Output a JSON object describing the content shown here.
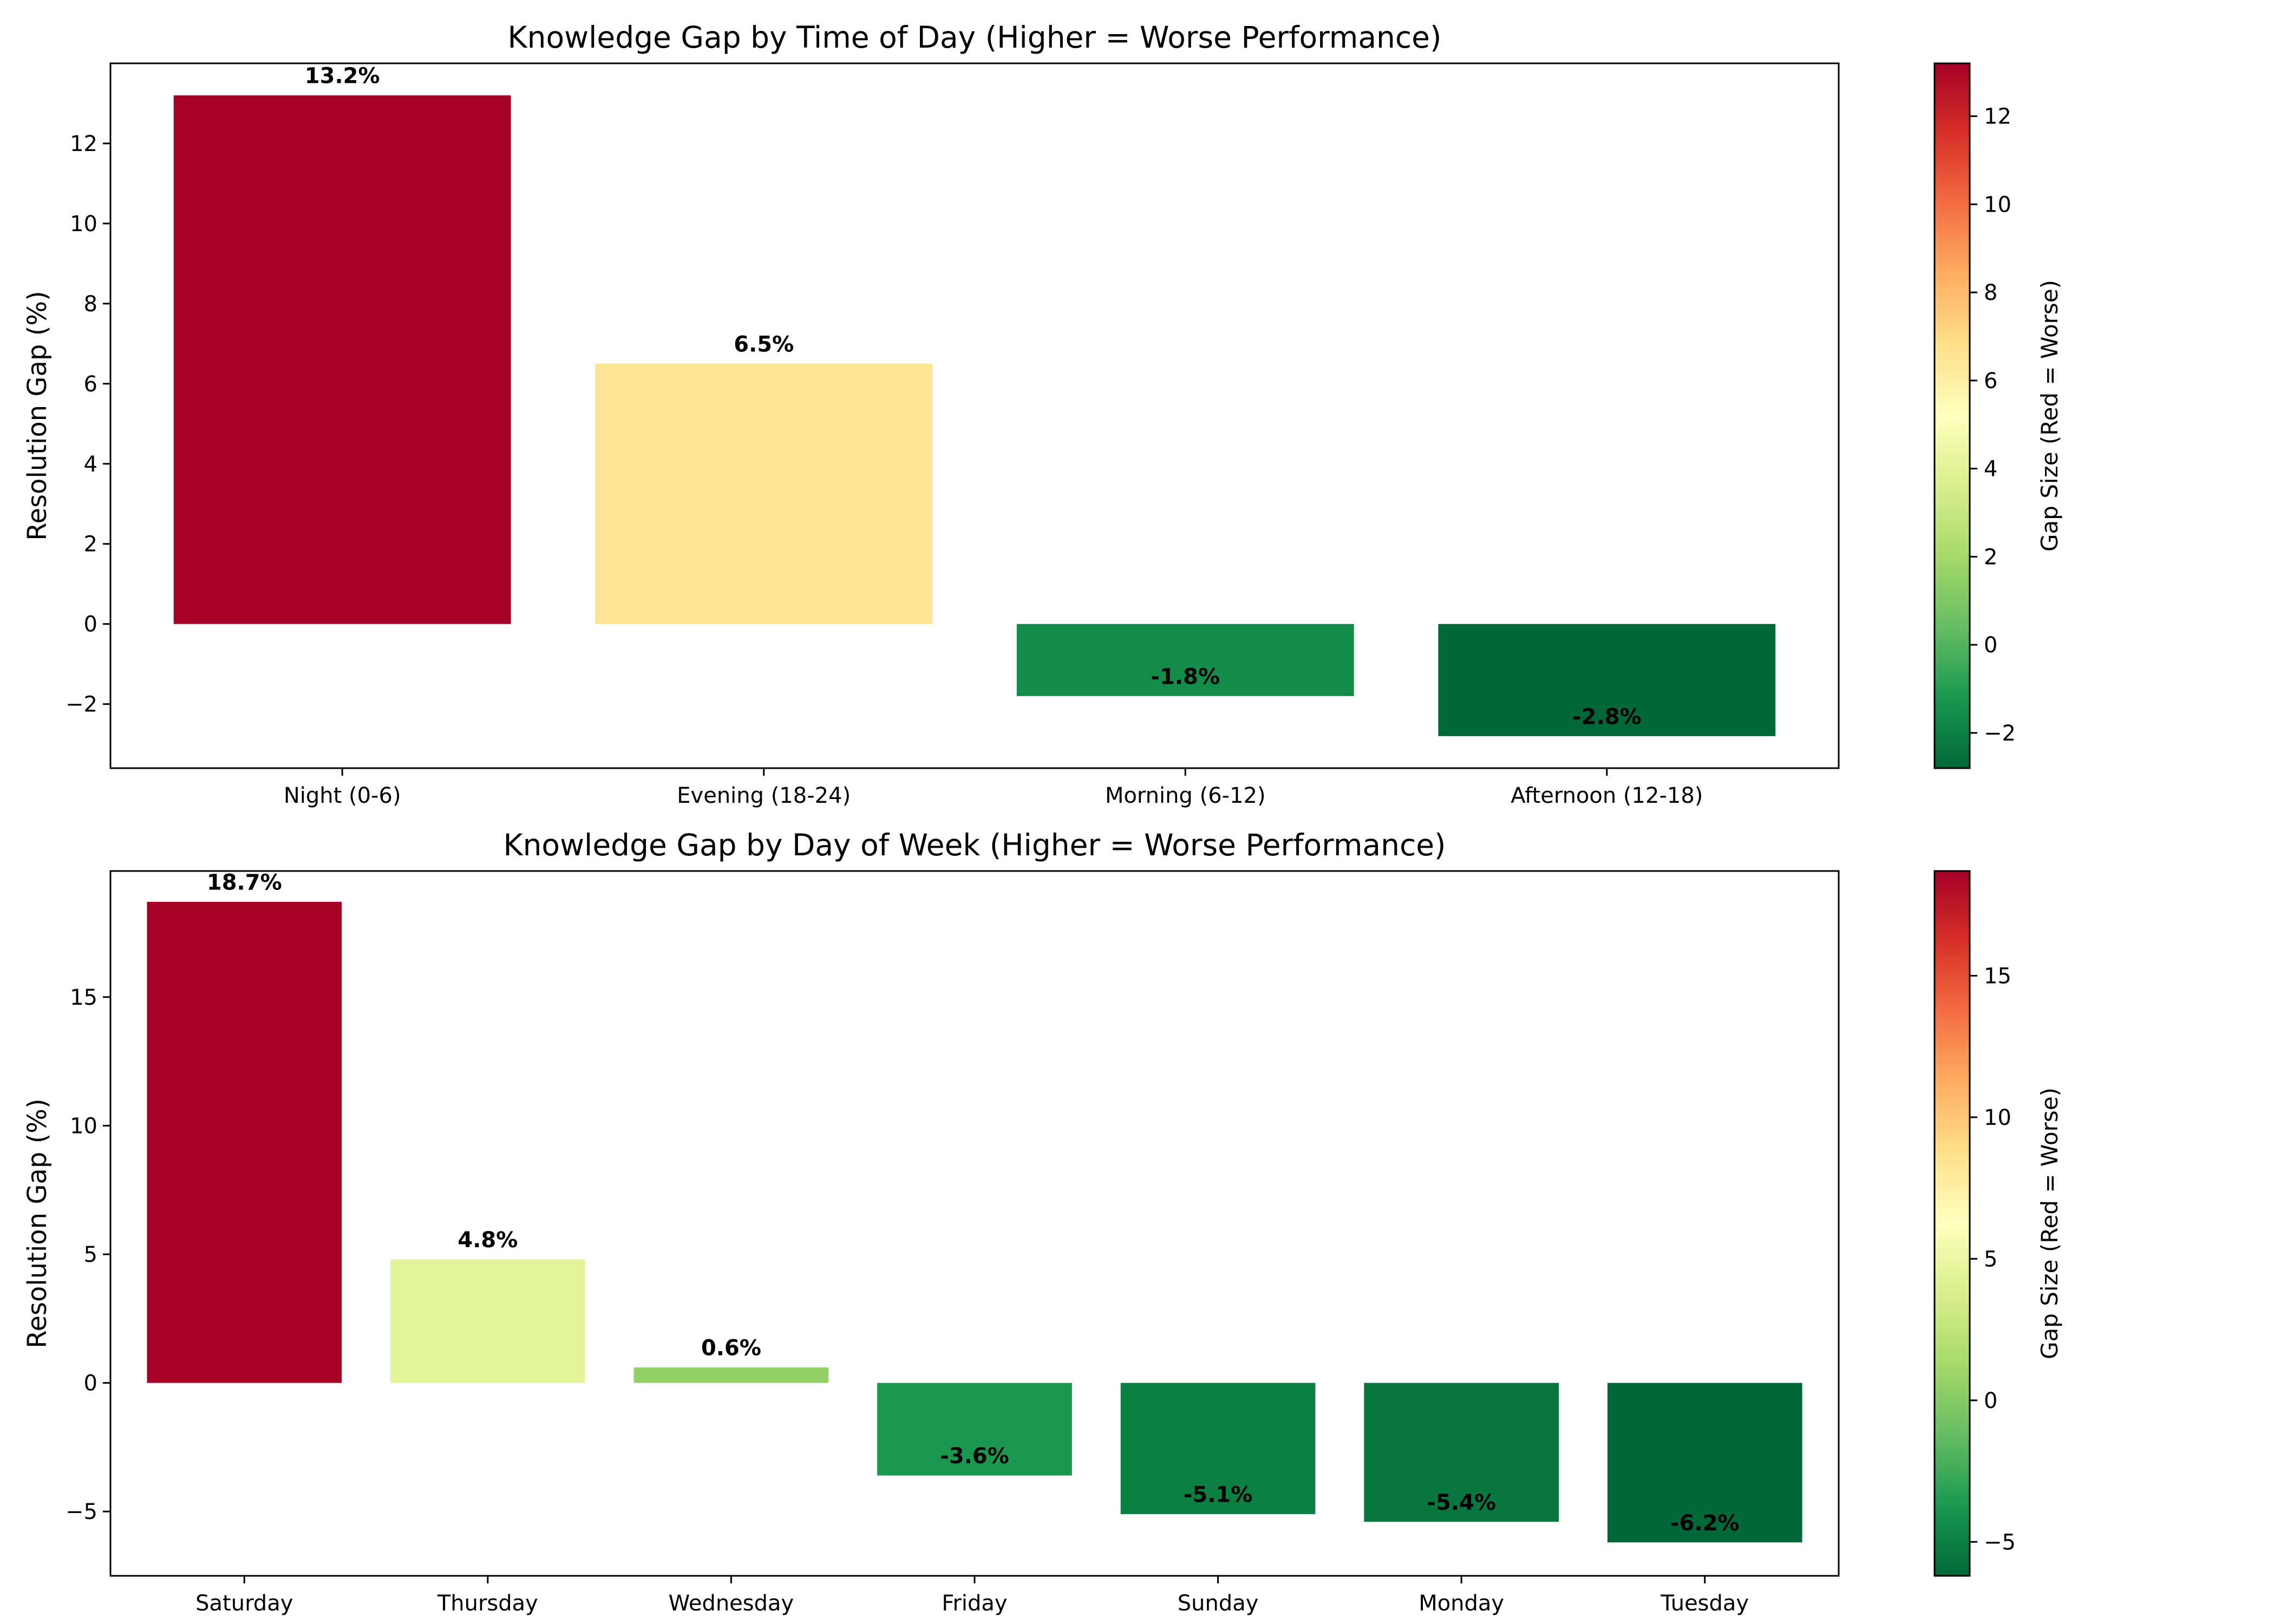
{
  "chart_data": [
    {
      "type": "bar",
      "title": "Knowledge Gap by Time of Day (Higher = Worse Performance)",
      "xlabel": "",
      "ylabel": "Resolution Gap (%)",
      "categories": [
        "Night (0-6)",
        "Evening (18-24)",
        "Morning (6-12)",
        "Afternoon (12-18)"
      ],
      "values": [
        13.2,
        6.5,
        -1.8,
        -2.8
      ],
      "value_labels": [
        "13.2%",
        "6.5%",
        "-1.8%",
        "-2.8%"
      ],
      "ylim": [
        -3.6,
        14.0
      ],
      "yticks": [
        -2,
        0,
        2,
        4,
        6,
        8,
        10,
        12
      ],
      "ytick_labels": [
        "−2",
        "0",
        "2",
        "4",
        "6",
        "8",
        "10",
        "12"
      ],
      "colorbar": {
        "label": "Gap Size (Red = Worse)",
        "colormap": "RdYlGn_r",
        "range": [
          -2.8,
          13.2
        ],
        "ticks": [
          -2,
          0,
          2,
          4,
          6,
          8,
          10,
          12
        ],
        "tick_labels": [
          "−2",
          "0",
          "2",
          "4",
          "6",
          "8",
          "10",
          "12"
        ]
      },
      "bar_colors": [
        "#a50026",
        "#fde593",
        "#138c4a",
        "#006837"
      ],
      "grid": false,
      "legend": "none"
    },
    {
      "type": "bar",
      "title": "Knowledge Gap by Day of Week (Higher = Worse Performance)",
      "xlabel": "",
      "ylabel": "Resolution Gap (%)",
      "categories": [
        "Saturday",
        "Thursday",
        "Wednesday",
        "Friday",
        "Sunday",
        "Monday",
        "Tuesday"
      ],
      "values": [
        18.7,
        4.8,
        0.6,
        -3.6,
        -5.1,
        -5.4,
        -6.2
      ],
      "value_labels": [
        "18.7%",
        "4.8%",
        "0.6%",
        "-3.6%",
        "-5.1%",
        "-5.4%",
        "-6.2%"
      ],
      "ylim": [
        -7.5,
        19.9
      ],
      "yticks": [
        -5,
        0,
        5,
        10,
        15
      ],
      "ytick_labels": [
        "−5",
        "0",
        "5",
        "10",
        "15"
      ],
      "colorbar": {
        "label": "Gap Size (Red = Worse)",
        "colormap": "RdYlGn_r",
        "range": [
          -6.2,
          18.7
        ],
        "ticks": [
          -5,
          0,
          5,
          10,
          15
        ],
        "tick_labels": [
          "−5",
          "0",
          "5",
          "10",
          "15"
        ]
      },
      "bar_colors": [
        "#a50026",
        "#e3f399",
        "#93d068",
        "#1a9850",
        "#0c7f43",
        "#08773f",
        "#006837"
      ],
      "grid": false,
      "legend": "none"
    }
  ]
}
